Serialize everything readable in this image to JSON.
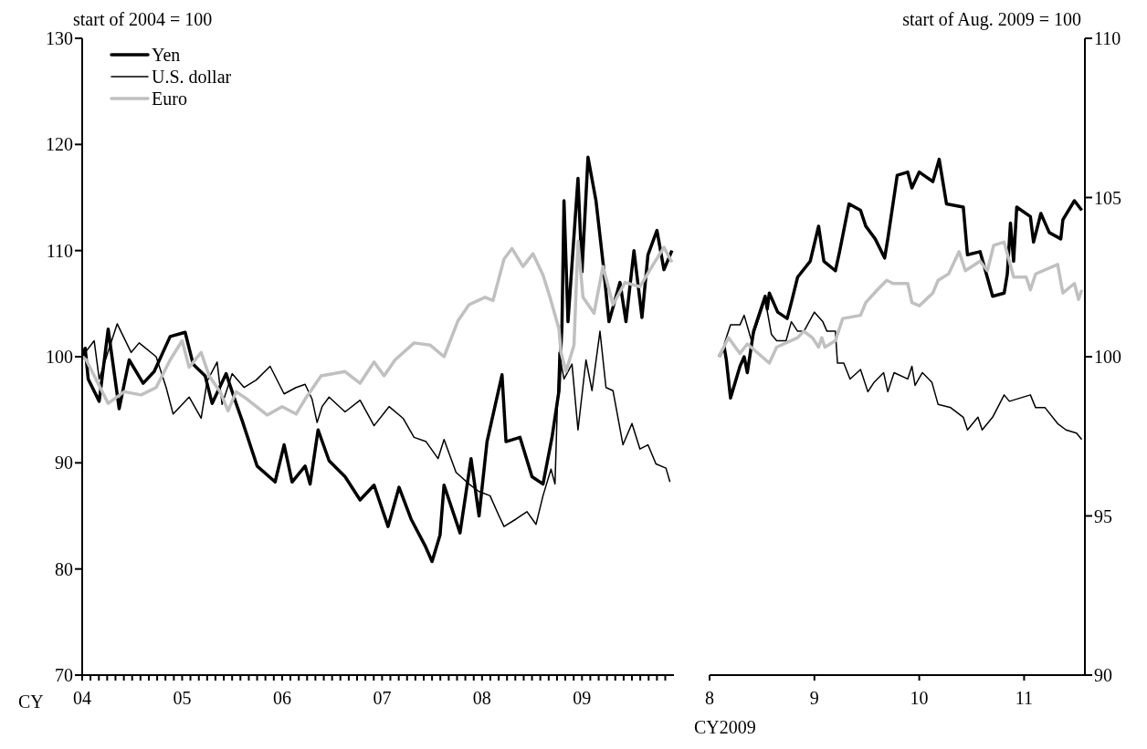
{
  "chart_data": [
    {
      "type": "line",
      "ylabel": "start of 2004 = 100",
      "xlabel": "CY",
      "xlim": [
        2004,
        2009.92
      ],
      "xticks": [
        {
          "value": 2004,
          "label": "04"
        },
        {
          "value": 2004.083,
          "label": null
        },
        {
          "value": 2004.167,
          "label": null
        },
        {
          "value": 2004.25,
          "label": null
        },
        {
          "value": 2004.333,
          "label": null
        },
        {
          "value": 2004.417,
          "label": null
        },
        {
          "value": 2004.5,
          "label": null
        },
        {
          "value": 2004.583,
          "label": null
        },
        {
          "value": 2004.667,
          "label": null
        },
        {
          "value": 2004.75,
          "label": null
        },
        {
          "value": 2004.833,
          "label": null
        },
        {
          "value": 2004.917,
          "label": null
        },
        {
          "value": 2005,
          "label": "05"
        },
        {
          "value": 2005.083,
          "label": null
        },
        {
          "value": 2005.167,
          "label": null
        },
        {
          "value": 2005.25,
          "label": null
        },
        {
          "value": 2005.333,
          "label": null
        },
        {
          "value": 2005.417,
          "label": null
        },
        {
          "value": 2005.5,
          "label": null
        },
        {
          "value": 2005.583,
          "label": null
        },
        {
          "value": 2005.667,
          "label": null
        },
        {
          "value": 2005.75,
          "label": null
        },
        {
          "value": 2005.833,
          "label": null
        },
        {
          "value": 2005.917,
          "label": null
        },
        {
          "value": 2006,
          "label": "06"
        },
        {
          "value": 2006.083,
          "label": null
        },
        {
          "value": 2006.167,
          "label": null
        },
        {
          "value": 2006.25,
          "label": null
        },
        {
          "value": 2006.333,
          "label": null
        },
        {
          "value": 2006.417,
          "label": null
        },
        {
          "value": 2006.5,
          "label": null
        },
        {
          "value": 2006.583,
          "label": null
        },
        {
          "value": 2006.667,
          "label": null
        },
        {
          "value": 2006.75,
          "label": null
        },
        {
          "value": 2006.833,
          "label": null
        },
        {
          "value": 2006.917,
          "label": null
        },
        {
          "value": 2007,
          "label": "07"
        },
        {
          "value": 2007.083,
          "label": null
        },
        {
          "value": 2007.167,
          "label": null
        },
        {
          "value": 2007.25,
          "label": null
        },
        {
          "value": 2007.333,
          "label": null
        },
        {
          "value": 2007.417,
          "label": null
        },
        {
          "value": 2007.5,
          "label": null
        },
        {
          "value": 2007.583,
          "label": null
        },
        {
          "value": 2007.667,
          "label": null
        },
        {
          "value": 2007.75,
          "label": null
        },
        {
          "value": 2007.833,
          "label": null
        },
        {
          "value": 2007.917,
          "label": null
        },
        {
          "value": 2008,
          "label": "08"
        },
        {
          "value": 2008.083,
          "label": null
        },
        {
          "value": 2008.167,
          "label": null
        },
        {
          "value": 2008.25,
          "label": null
        },
        {
          "value": 2008.333,
          "label": null
        },
        {
          "value": 2008.417,
          "label": null
        },
        {
          "value": 2008.5,
          "label": null
        },
        {
          "value": 2008.583,
          "label": null
        },
        {
          "value": 2008.667,
          "label": null
        },
        {
          "value": 2008.75,
          "label": null
        },
        {
          "value": 2008.833,
          "label": null
        },
        {
          "value": 2008.917,
          "label": null
        },
        {
          "value": 2009,
          "label": "09"
        },
        {
          "value": 2009.083,
          "label": null
        },
        {
          "value": 2009.167,
          "label": null
        },
        {
          "value": 2009.25,
          "label": null
        },
        {
          "value": 2009.333,
          "label": null
        },
        {
          "value": 2009.417,
          "label": null
        },
        {
          "value": 2009.5,
          "label": null
        },
        {
          "value": 2009.583,
          "label": null
        },
        {
          "value": 2009.667,
          "label": null
        },
        {
          "value": 2009.75,
          "label": null
        },
        {
          "value": 2009.833,
          "label": null
        }
      ],
      "ylim": [
        70,
        130
      ],
      "yticks": [
        70,
        80,
        90,
        100,
        110,
        120,
        130
      ],
      "legend": "top left",
      "marker": "none",
      "line_style": "solid",
      "series": [
        {
          "name": "Yen",
          "color": "#000000",
          "x": [
            2004,
            2004.03,
            2004.06,
            2004.17,
            2004.26,
            2004.37,
            2004.47,
            2004.61,
            2004.72,
            2004.88,
            2005.03,
            2005.11,
            2005.23,
            2005.3,
            2005.44,
            2005.54,
            2005.6,
            2005.75,
            2005.93,
            2006.02,
            2006.1,
            2006.23,
            2006.28,
            2006.36,
            2006.47,
            2006.63,
            2006.78,
            2006.92,
            2007.06,
            2007.17,
            2007.29,
            2007.43,
            2007.5,
            2007.58,
            2007.62,
            2007.78,
            2007.89,
            2007.97,
            2008.05,
            2008.2,
            2008.24,
            2008.38,
            2008.5,
            2008.61,
            2008.7,
            2008.77,
            2008.8,
            2008.82,
            2008.86,
            2008.96,
            2009,
            2009.06,
            2009.14,
            2009.21,
            2009.27,
            2009.38,
            2009.44,
            2009.52,
            2009.6,
            2009.66,
            2009.75,
            2009.82,
            2009.9
          ],
          "values": [
            100,
            100.8,
            97.9,
            95.8,
            102.6,
            95.1,
            99.7,
            97.5,
            98.6,
            101.9,
            102.3,
            99.3,
            98.2,
            95.6,
            98.4,
            95.6,
            94,
            89.7,
            88.2,
            91.7,
            88.2,
            89.7,
            88,
            93.1,
            90.2,
            88.7,
            86.5,
            87.9,
            84,
            87.7,
            84.7,
            82.2,
            80.7,
            83.2,
            87.9,
            83.4,
            90.4,
            85,
            92,
            98.3,
            92,
            92.4,
            88.7,
            88,
            92.4,
            96.8,
            103,
            114.7,
            103.3,
            116.8,
            108,
            118.8,
            114.7,
            108.9,
            103.3,
            107,
            103.3,
            110,
            103.7,
            109.6,
            111.9,
            108.2,
            110
          ]
        },
        {
          "name": "U.S. dollar",
          "color": "#000000",
          "x": [
            2004,
            2004.03,
            2004.12,
            2004.17,
            2004.35,
            2004.49,
            2004.57,
            2004.74,
            2004.84,
            2004.91,
            2005.07,
            2005.19,
            2005.25,
            2005.35,
            2005.4,
            2005.5,
            2005.62,
            2005.74,
            2005.88,
            2006.02,
            2006.14,
            2006.23,
            2006.3,
            2006.35,
            2006.4,
            2006.47,
            2006.63,
            2006.78,
            2006.92,
            2007.07,
            2007.21,
            2007.32,
            2007.44,
            2007.56,
            2007.62,
            2007.74,
            2007.87,
            2007.97,
            2008.08,
            2008.17,
            2008.22,
            2008.34,
            2008.45,
            2008.54,
            2008.61,
            2008.69,
            2008.73,
            2008.77,
            2008.82,
            2008.9,
            2008.96,
            2009.04,
            2009.1,
            2009.18,
            2009.24,
            2009.31,
            2009.41,
            2009.5,
            2009.58,
            2009.66,
            2009.74,
            2009.84,
            2009.88
          ],
          "values": [
            100,
            100.4,
            101.5,
            97.9,
            103.1,
            100.4,
            101.3,
            100,
            97.1,
            94.6,
            96.2,
            94.2,
            97.7,
            99.5,
            95.5,
            98.4,
            97.1,
            97.8,
            99.1,
            96.5,
            97.1,
            97.4,
            96,
            93.8,
            95.3,
            96.2,
            94.8,
            95.9,
            93.5,
            95.3,
            94.2,
            92.4,
            92,
            90.4,
            92.2,
            89.1,
            88,
            87.3,
            86.9,
            85,
            84,
            84.7,
            85.4,
            84.2,
            86.9,
            89.4,
            88,
            100.4,
            97.9,
            99.3,
            93.1,
            99.7,
            96.8,
            102.4,
            97.1,
            96.8,
            91.7,
            93.7,
            91.3,
            91.7,
            89.9,
            89.5,
            88.2
          ]
        },
        {
          "name": "Euro",
          "color": "#c0c0c0",
          "x": [
            2004,
            2004.04,
            2004.26,
            2004.42,
            2004.59,
            2004.74,
            2004.88,
            2005,
            2005.07,
            2005.19,
            2005.27,
            2005.38,
            2005.46,
            2005.54,
            2005.65,
            2005.85,
            2006,
            2006.14,
            2006.23,
            2006.39,
            2006.63,
            2006.78,
            2006.92,
            2007.02,
            2007.13,
            2007.32,
            2007.48,
            2007.62,
            2007.76,
            2007.87,
            2008.03,
            2008.11,
            2008.22,
            2008.3,
            2008.41,
            2008.51,
            2008.61,
            2008.68,
            2008.77,
            2008.79,
            2008.84,
            2008.92,
            2008.96,
            2009.01,
            2009.12,
            2009.21,
            2009.31,
            2009.43,
            2009.58,
            2009.7,
            2009.82,
            2009.9
          ],
          "values": [
            100,
            99.7,
            95.6,
            96.7,
            96.4,
            97.1,
            99.7,
            101.5,
            99,
            100.4,
            98.2,
            96.7,
            94.9,
            96.7,
            96,
            94.5,
            95.3,
            94.6,
            96,
            98.2,
            98.6,
            97.5,
            99.5,
            98.2,
            99.7,
            101.3,
            101.1,
            100,
            103.4,
            104.9,
            105.6,
            105.3,
            109.2,
            110.2,
            108.5,
            109.7,
            107.7,
            105.6,
            102.6,
            100.4,
            98.6,
            101.1,
            110.9,
            105.6,
            104.1,
            108.5,
            104.9,
            107,
            106.6,
            108.5,
            110.3,
            108.9
          ]
        }
      ]
    },
    {
      "type": "line",
      "y2label": "start of Aug. 2009 = 100",
      "xlabel": "CY2009",
      "xlim": [
        8,
        11.58
      ],
      "xticks": [
        8,
        9,
        10,
        11
      ],
      "y2lim": [
        90,
        110
      ],
      "y2ticks": [
        90,
        95,
        100,
        105,
        110
      ],
      "legend": false,
      "marker": "none",
      "line_style": "solid",
      "series": [
        {
          "color": "#000000",
          "axis": "y2",
          "x": [
            8.09,
            8.14,
            8.16,
            8.2,
            8.29,
            8.33,
            8.36,
            8.42,
            8.53,
            8.55,
            8.57,
            8.65,
            8.74,
            8.78,
            8.84,
            8.96,
            9.04,
            9.09,
            9.2,
            9.24,
            9.33,
            9.44,
            9.49,
            9.58,
            9.67,
            9.7,
            9.79,
            9.89,
            9.93,
            10,
            10.13,
            10.19,
            10.26,
            10.42,
            10.46,
            10.58,
            10.7,
            10.81,
            10.84,
            10.87,
            10.9,
            10.93,
            11.06,
            11.09,
            11.16,
            11.24,
            11.35,
            11.37,
            11.48,
            11.55
          ],
          "values": [
            100,
            100.3,
            99.9,
            98.7,
            99.7,
            100,
            99.5,
            100.8,
            101.9,
            101.5,
            102,
            101.4,
            101.2,
            101.7,
            102.5,
            103,
            104.1,
            103,
            102.7,
            103.3,
            104.8,
            104.6,
            104.1,
            103.7,
            103.1,
            103.7,
            105.7,
            105.8,
            105.3,
            105.8,
            105.5,
            106.2,
            104.8,
            104.7,
            103.2,
            103.3,
            101.9,
            102,
            102.6,
            104.2,
            103,
            104.7,
            104.4,
            103.6,
            104.5,
            103.9,
            103.7,
            104.3,
            104.9,
            104.6
          ]
        },
        {
          "color": "#000000",
          "axis": "y2",
          "x": [
            8.14,
            8.2,
            8.29,
            8.33,
            8.4,
            8.53,
            8.59,
            8.64,
            8.73,
            8.78,
            8.84,
            8.9,
            9,
            9.08,
            9.12,
            9.2,
            9.22,
            9.28,
            9.34,
            9.44,
            9.51,
            9.57,
            9.66,
            9.7,
            9.76,
            9.89,
            9.93,
            9.96,
            10.03,
            10.12,
            10.18,
            10.3,
            10.42,
            10.46,
            10.56,
            10.6,
            10.7,
            10.81,
            10.86,
            11.06,
            11.11,
            11.2,
            11.32,
            11.4,
            11.5,
            11.55
          ],
          "values": [
            100.4,
            101,
            101,
            101.3,
            100.5,
            101.8,
            100.7,
            100.5,
            100.5,
            101.1,
            100.8,
            100.8,
            101.4,
            101.1,
            100.8,
            100.8,
            99.8,
            99.8,
            99.3,
            99.6,
            98.9,
            99.2,
            99.5,
            98.9,
            99.5,
            99.3,
            99.7,
            99.1,
            99.5,
            99.2,
            98.5,
            98.4,
            98.1,
            97.7,
            98.1,
            97.7,
            98.1,
            98.8,
            98.6,
            98.8,
            98.4,
            98.4,
            97.9,
            97.7,
            97.6,
            97.4
          ]
        },
        {
          "color": "#c0c0c0",
          "axis": "y2",
          "x": [
            8.09,
            8.18,
            8.29,
            8.36,
            8.57,
            8.64,
            8.84,
            8.9,
            8.98,
            9.04,
            9.07,
            9.1,
            9.2,
            9.27,
            9.44,
            9.49,
            9.6,
            9.69,
            9.75,
            9.89,
            9.93,
            10,
            10.13,
            10.18,
            10.28,
            10.38,
            10.44,
            10.58,
            10.65,
            10.71,
            10.81,
            10.9,
            11.02,
            11.06,
            11.11,
            11.32,
            11.37,
            11.48,
            11.52,
            11.55
          ],
          "values": [
            100,
            100.6,
            100.1,
            100.4,
            99.8,
            100.3,
            100.6,
            100.8,
            100.6,
            100.3,
            100.6,
            100.3,
            100.5,
            101.2,
            101.3,
            101.7,
            102.1,
            102.4,
            102.3,
            102.3,
            101.7,
            101.6,
            102,
            102.4,
            102.6,
            103.3,
            102.7,
            103,
            102.7,
            103.5,
            103.6,
            102.5,
            102.5,
            102.1,
            102.6,
            102.9,
            102,
            102.3,
            101.8,
            102.1
          ]
        }
      ]
    }
  ]
}
